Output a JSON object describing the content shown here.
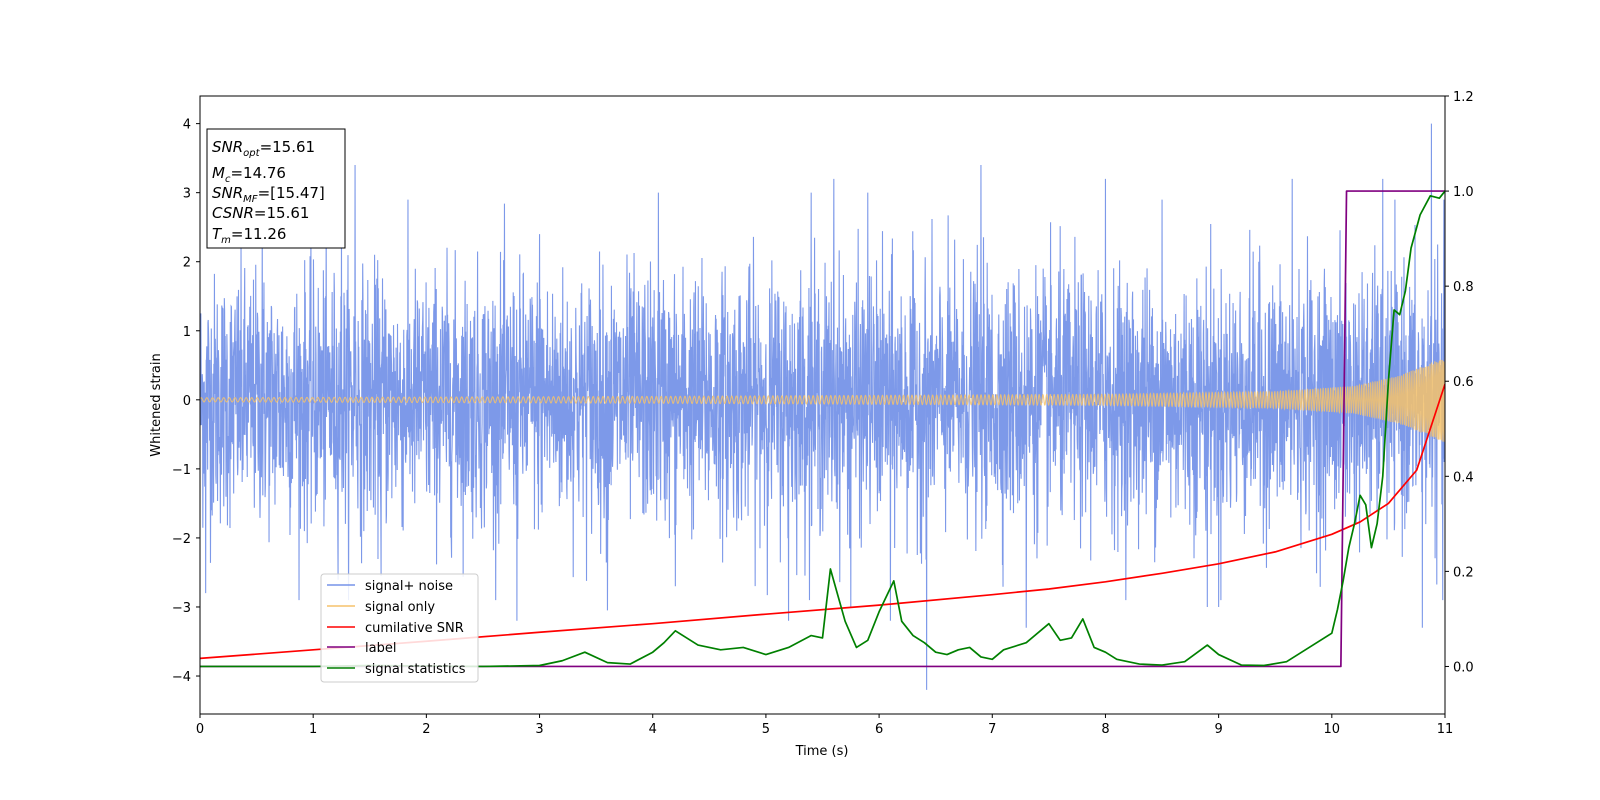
{
  "chart_data": {
    "type": "line",
    "xlabel": "Time (s)",
    "ylabel": "Whitened strain",
    "xlim": [
      0,
      11
    ],
    "ylim_left": [
      -4.55,
      4.4
    ],
    "ylim_right": [
      -0.1,
      1.2
    ],
    "x_ticks": [
      0,
      1,
      2,
      3,
      4,
      5,
      6,
      7,
      8,
      9,
      10,
      11
    ],
    "y_ticks_left": [
      -4,
      -3,
      -2,
      -1,
      0,
      1,
      2,
      3,
      4
    ],
    "y_ticks_right": [
      0.0,
      0.2,
      0.4,
      0.6,
      0.8,
      1.0,
      1.2
    ],
    "stats_box": {
      "position": "top-left",
      "lines": [
        {
          "main": "SNR",
          "sub": "opt",
          "value": "=15.61"
        },
        {
          "main": "M",
          "sub": "c",
          "value": "=14.76"
        },
        {
          "main": "SNR",
          "sub": "MF",
          "value": "=[15.47]"
        },
        {
          "main": "CSNR",
          "sub": "",
          "value": "=15.61"
        },
        {
          "main": "T",
          "sub": "m",
          "value": "=11.26"
        }
      ]
    },
    "legend": {
      "position": "lower-left",
      "entries": [
        "signal+ noise",
        "signal only",
        "cumilative SNR",
        "label",
        "signal statistics"
      ]
    },
    "series": [
      {
        "name": "signal+ noise",
        "axis": "left",
        "color": "#7693e8",
        "description_kind": "noise",
        "amplitude_std": 0.9,
        "peaks": [
          [
            0.05,
            -2.8
          ],
          [
            0.55,
            2.5
          ],
          [
            1.25,
            2.4
          ],
          [
            1.37,
            3.4
          ],
          [
            1.6,
            -2.55
          ],
          [
            2.8,
            -3.2
          ],
          [
            3.0,
            2.4
          ],
          [
            3.6,
            -3.05
          ],
          [
            4.05,
            3.0
          ],
          [
            4.2,
            -2.7
          ],
          [
            5.2,
            -3.2
          ],
          [
            5.4,
            3.0
          ],
          [
            5.6,
            3.2
          ],
          [
            5.75,
            -3.0
          ],
          [
            5.9,
            3.0
          ],
          [
            6.1,
            -3.2
          ],
          [
            6.42,
            -4.2
          ],
          [
            6.9,
            3.4
          ],
          [
            7.3,
            -3.3
          ],
          [
            8.0,
            3.2
          ],
          [
            8.5,
            2.9
          ],
          [
            8.9,
            -3.0
          ],
          [
            9.0,
            -3.0
          ],
          [
            9.65,
            3.2
          ],
          [
            10.45,
            3.2
          ],
          [
            10.8,
            -3.3
          ],
          [
            10.88,
            4.0
          ],
          [
            10.98,
            -2.9
          ]
        ]
      },
      {
        "name": "signal only",
        "axis": "left",
        "color": "#f5c26b",
        "envelope": [
          [
            0,
            0.03
          ],
          [
            4,
            0.05
          ],
          [
            8,
            0.08
          ],
          [
            9.5,
            0.12
          ],
          [
            10.2,
            0.2
          ],
          [
            10.6,
            0.35
          ],
          [
            11,
            0.62
          ]
        ]
      },
      {
        "name": "cumilative SNR",
        "axis": "right",
        "color": "#ff0000",
        "x": [
          0,
          1,
          2,
          3,
          4,
          5,
          6,
          7,
          7.5,
          8,
          8.5,
          9,
          9.5,
          10,
          10.25,
          10.5,
          10.75,
          11
        ],
        "y": [
          0.017,
          0.035,
          0.053,
          0.072,
          0.09,
          0.11,
          0.129,
          0.151,
          0.163,
          0.178,
          0.196,
          0.216,
          0.241,
          0.278,
          0.304,
          0.343,
          0.413,
          0.594
        ]
      },
      {
        "name": "label",
        "axis": "right",
        "color": "#800080",
        "x": [
          0,
          10.08,
          10.13,
          11
        ],
        "y": [
          0,
          0,
          1,
          1
        ]
      },
      {
        "name": "signal statistics",
        "axis": "right",
        "color": "#008000",
        "x": [
          0,
          0.5,
          1,
          1.5,
          2,
          2.5,
          3,
          3.2,
          3.4,
          3.6,
          3.8,
          4.0,
          4.1,
          4.2,
          4.3,
          4.4,
          4.6,
          4.8,
          5.0,
          5.2,
          5.4,
          5.5,
          5.57,
          5.7,
          5.8,
          5.9,
          6.0,
          6.13,
          6.2,
          6.3,
          6.4,
          6.5,
          6.6,
          6.7,
          6.8,
          6.9,
          7.0,
          7.1,
          7.3,
          7.5,
          7.6,
          7.7,
          7.8,
          7.9,
          8.0,
          8.1,
          8.3,
          8.5,
          8.7,
          8.9,
          9.0,
          9.2,
          9.4,
          9.6,
          9.8,
          10.0,
          10.05,
          10.1,
          10.15,
          10.2,
          10.25,
          10.3,
          10.35,
          10.4,
          10.45,
          10.5,
          10.55,
          10.6,
          10.65,
          10.7,
          10.78,
          10.87,
          10.95,
          11.0
        ],
        "y": [
          0.0,
          0.0,
          0.0,
          0.002,
          0.001,
          0.0,
          0.002,
          0.012,
          0.03,
          0.008,
          0.005,
          0.03,
          0.05,
          0.075,
          0.06,
          0.045,
          0.035,
          0.04,
          0.025,
          0.04,
          0.065,
          0.06,
          0.205,
          0.095,
          0.04,
          0.055,
          0.115,
          0.18,
          0.095,
          0.065,
          0.05,
          0.03,
          0.025,
          0.035,
          0.04,
          0.02,
          0.015,
          0.035,
          0.05,
          0.09,
          0.055,
          0.06,
          0.1,
          0.04,
          0.03,
          0.015,
          0.005,
          0.003,
          0.01,
          0.045,
          0.025,
          0.003,
          0.002,
          0.01,
          0.04,
          0.07,
          0.12,
          0.18,
          0.25,
          0.3,
          0.36,
          0.34,
          0.25,
          0.3,
          0.4,
          0.6,
          0.75,
          0.74,
          0.79,
          0.88,
          0.95,
          0.99,
          0.985,
          1.0
        ]
      }
    ]
  }
}
